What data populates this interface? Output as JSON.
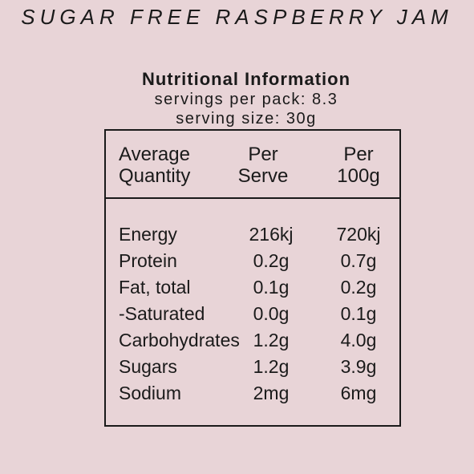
{
  "product_title": "SUGAR FREE RASPBERRY JAM",
  "panel_heading": "Nutritional Information",
  "servings_per_pack": "servings per pack: 8.3",
  "serving_size": "serving size: 30g",
  "table": {
    "headers": [
      [
        "Average",
        "Quantity"
      ],
      [
        "Per",
        "Serve"
      ],
      [
        "Per",
        "100g"
      ]
    ],
    "rows": [
      {
        "label": "Energy",
        "per_serve": "216kj",
        "per_100g": "720kj"
      },
      {
        "label": "Protein",
        "per_serve": "0.2g",
        "per_100g": "0.7g"
      },
      {
        "label": "Fat, total",
        "per_serve": "0.1g",
        "per_100g": "0.2g"
      },
      {
        "label": "-Saturated",
        "per_serve": "0.0g",
        "per_100g": "0.1g"
      },
      {
        "label": "Carbohydrates",
        "per_serve": "1.2g",
        "per_100g": "4.0g"
      },
      {
        "label": "Sugars",
        "per_serve": "1.2g",
        "per_100g": "3.9g"
      },
      {
        "label": "Sodium",
        "per_serve": "2mg",
        "per_100g": "6mg"
      }
    ]
  },
  "colors": {
    "background": "#e8d4d7",
    "text": "#1a1a1a"
  }
}
